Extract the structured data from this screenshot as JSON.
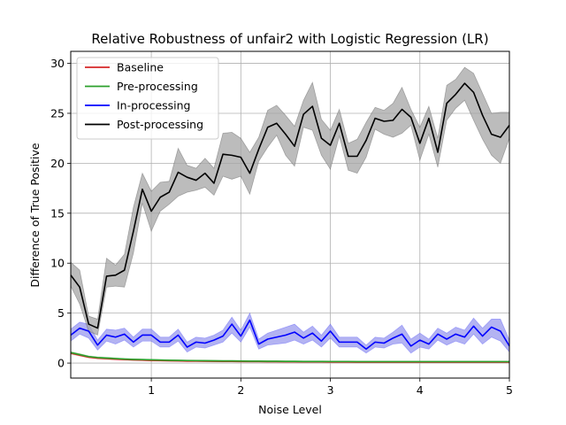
{
  "chart_data": {
    "type": "line",
    "title": "Relative Robustness of unfair2 with Logistic Regression (LR)",
    "xlabel": "Noise Level",
    "ylabel": "Difference of True Positive",
    "xlim": [
      0.1,
      5.0
    ],
    "ylim": [
      -1.5,
      31.2
    ],
    "xticks": [
      1,
      2,
      3,
      4,
      5
    ],
    "yticks": [
      0,
      5,
      10,
      15,
      20,
      25,
      30
    ],
    "grid": true,
    "legend_position": "top-left",
    "x": [
      0.1,
      0.2,
      0.3,
      0.4,
      0.5,
      0.6,
      0.7,
      0.8,
      0.9,
      1.0,
      1.1,
      1.2,
      1.3,
      1.4,
      1.5,
      1.6,
      1.7,
      1.8,
      1.9,
      2.0,
      2.1,
      2.2,
      2.3,
      2.4,
      2.5,
      2.6,
      2.7,
      2.8,
      2.9,
      3.0,
      3.1,
      3.2,
      3.3,
      3.4,
      3.5,
      3.6,
      3.7,
      3.8,
      3.9,
      4.0,
      4.1,
      4.2,
      4.3,
      4.4,
      4.5,
      4.6,
      4.7,
      4.8,
      4.9,
      5.0
    ],
    "series": [
      {
        "name": "Baseline",
        "color": "#d62728",
        "fill": "#e88080",
        "values": [
          1.0,
          0.8,
          0.6,
          0.5,
          0.45,
          0.4,
          0.35,
          0.32,
          0.3,
          0.27,
          0.25,
          0.23,
          0.22,
          0.2,
          0.2,
          0.19,
          0.18,
          0.17,
          0.17,
          0.16,
          0.15,
          0.15,
          0.14,
          0.14,
          0.13,
          0.13,
          0.12,
          0.12,
          0.12,
          0.11,
          0.11,
          0.11,
          0.1,
          0.1,
          0.1,
          0.1,
          0.1,
          0.1,
          0.1,
          0.1,
          0.1,
          0.1,
          0.1,
          0.1,
          0.1,
          0.1,
          0.1,
          0.1,
          0.1,
          0.1
        ],
        "lower": [
          0.9,
          0.7,
          0.52,
          0.42,
          0.36,
          0.32,
          0.28,
          0.25,
          0.23,
          0.2,
          0.18,
          0.17,
          0.16,
          0.14,
          0.14,
          0.13,
          0.12,
          0.11,
          0.11,
          0.1,
          0.09,
          0.09,
          0.08,
          0.08,
          0.07,
          0.07,
          0.06,
          0.06,
          0.06,
          0.05,
          0.05,
          0.05,
          0.04,
          0.04,
          0.04,
          0.04,
          0.04,
          0.04,
          0.04,
          0.04,
          0.04,
          0.04,
          0.04,
          0.04,
          0.04,
          0.04,
          0.04,
          0.04,
          0.04,
          0.04
        ],
        "upper": [
          1.1,
          0.9,
          0.68,
          0.58,
          0.54,
          0.48,
          0.42,
          0.39,
          0.37,
          0.34,
          0.32,
          0.29,
          0.28,
          0.26,
          0.26,
          0.25,
          0.24,
          0.23,
          0.23,
          0.22,
          0.21,
          0.21,
          0.2,
          0.2,
          0.19,
          0.19,
          0.18,
          0.18,
          0.18,
          0.17,
          0.17,
          0.17,
          0.16,
          0.16,
          0.16,
          0.16,
          0.16,
          0.16,
          0.16,
          0.16,
          0.16,
          0.16,
          0.16,
          0.16,
          0.16,
          0.16,
          0.16,
          0.16,
          0.16,
          0.16
        ]
      },
      {
        "name": "Pre-processing",
        "color": "#2ca02c",
        "fill": "#80c880",
        "values": [
          1.05,
          0.85,
          0.65,
          0.55,
          0.5,
          0.45,
          0.4,
          0.37,
          0.35,
          0.32,
          0.3,
          0.28,
          0.27,
          0.25,
          0.24,
          0.23,
          0.22,
          0.21,
          0.21,
          0.2,
          0.19,
          0.19,
          0.18,
          0.18,
          0.17,
          0.17,
          0.16,
          0.16,
          0.16,
          0.15,
          0.15,
          0.15,
          0.14,
          0.14,
          0.14,
          0.14,
          0.14,
          0.14,
          0.14,
          0.14,
          0.14,
          0.14,
          0.14,
          0.14,
          0.14,
          0.14,
          0.14,
          0.14,
          0.14,
          0.14
        ],
        "lower": [
          0.95,
          0.75,
          0.57,
          0.47,
          0.42,
          0.37,
          0.33,
          0.3,
          0.28,
          0.25,
          0.23,
          0.21,
          0.2,
          0.18,
          0.17,
          0.16,
          0.15,
          0.14,
          0.14,
          0.13,
          0.12,
          0.12,
          0.11,
          0.11,
          0.1,
          0.1,
          0.09,
          0.09,
          0.09,
          0.08,
          0.08,
          0.08,
          0.07,
          0.07,
          0.07,
          0.07,
          0.07,
          0.07,
          0.07,
          0.07,
          0.07,
          0.07,
          0.07,
          0.07,
          0.07,
          0.07,
          0.07,
          0.07,
          0.07,
          0.07
        ],
        "upper": [
          1.15,
          0.95,
          0.73,
          0.63,
          0.58,
          0.53,
          0.47,
          0.44,
          0.42,
          0.39,
          0.37,
          0.35,
          0.34,
          0.32,
          0.31,
          0.3,
          0.29,
          0.28,
          0.28,
          0.27,
          0.26,
          0.26,
          0.25,
          0.25,
          0.24,
          0.24,
          0.23,
          0.23,
          0.23,
          0.22,
          0.22,
          0.22,
          0.21,
          0.21,
          0.21,
          0.21,
          0.21,
          0.21,
          0.21,
          0.21,
          0.21,
          0.21,
          0.21,
          0.21,
          0.21,
          0.21,
          0.21,
          0.21,
          0.21,
          0.21
        ]
      },
      {
        "name": "In-processing",
        "color": "#0000ff",
        "fill": "#9a9aee",
        "values": [
          2.8,
          3.5,
          3.2,
          1.8,
          2.8,
          2.6,
          2.9,
          2.1,
          2.8,
          2.8,
          2.1,
          2.1,
          2.8,
          1.6,
          2.1,
          2.0,
          2.3,
          2.7,
          3.9,
          2.7,
          4.3,
          1.9,
          2.4,
          2.6,
          2.8,
          3.1,
          2.5,
          3.0,
          2.2,
          3.2,
          2.1,
          2.1,
          2.1,
          1.4,
          2.1,
          2.0,
          2.5,
          2.9,
          1.7,
          2.3,
          1.9,
          2.9,
          2.4,
          2.9,
          2.6,
          3.7,
          2.7,
          3.6,
          3.2,
          1.7
        ],
        "lower": [
          2.2,
          2.9,
          2.5,
          1.3,
          2.2,
          1.9,
          2.3,
          1.6,
          2.2,
          2.2,
          1.6,
          1.6,
          2.2,
          1.1,
          1.6,
          1.5,
          1.8,
          2.1,
          3.0,
          2.1,
          3.6,
          1.4,
          1.8,
          1.9,
          2.0,
          2.3,
          1.9,
          2.3,
          1.6,
          2.5,
          1.6,
          1.6,
          1.6,
          1.0,
          1.6,
          1.5,
          1.9,
          2.0,
          1.0,
          1.6,
          1.4,
          2.3,
          1.8,
          2.2,
          1.9,
          2.9,
          1.9,
          2.6,
          2.2,
          1.1
        ],
        "upper": [
          3.4,
          4.1,
          3.9,
          2.3,
          3.4,
          3.3,
          3.5,
          2.6,
          3.4,
          3.4,
          2.6,
          2.6,
          3.4,
          2.1,
          2.6,
          2.5,
          2.8,
          3.3,
          4.6,
          3.3,
          5.0,
          2.4,
          3.0,
          3.3,
          3.6,
          3.9,
          3.1,
          3.7,
          2.8,
          3.9,
          2.6,
          2.6,
          2.6,
          1.8,
          2.6,
          2.5,
          3.1,
          3.8,
          2.4,
          3.0,
          2.4,
          3.5,
          3.0,
          3.6,
          3.3,
          4.5,
          3.5,
          4.4,
          4.4,
          2.3
        ]
      },
      {
        "name": "Post-processing",
        "color": "#000000",
        "fill": "#a6a6a6",
        "values": [
          8.8,
          7.6,
          3.9,
          3.5,
          8.7,
          8.8,
          9.3,
          13.2,
          17.4,
          15.2,
          16.6,
          17.1,
          19.1,
          18.6,
          18.3,
          19.0,
          18.0,
          20.9,
          20.8,
          20.6,
          19.0,
          21.4,
          23.6,
          24.0,
          22.9,
          21.7,
          24.9,
          25.7,
          22.5,
          21.8,
          24.0,
          20.7,
          20.7,
          22.3,
          24.5,
          24.2,
          24.3,
          25.4,
          24.6,
          22.0,
          24.5,
          21.1,
          26.0,
          26.9,
          28.0,
          27.1,
          24.8,
          22.9,
          22.6,
          23.8
        ],
        "lower": [
          7.7,
          5.9,
          3.2,
          2.8,
          7.6,
          7.7,
          7.6,
          11.0,
          16.0,
          13.2,
          15.2,
          15.9,
          16.7,
          17.1,
          17.3,
          17.6,
          16.8,
          18.7,
          18.4,
          18.7,
          16.9,
          20.2,
          21.6,
          22.8,
          20.8,
          19.7,
          23.6,
          23.3,
          20.8,
          19.4,
          22.7,
          19.3,
          19.0,
          20.6,
          23.4,
          22.9,
          22.6,
          23.0,
          23.8,
          20.3,
          22.9,
          19.6,
          24.3,
          25.5,
          26.3,
          24.3,
          22.4,
          20.8,
          20.0,
          22.5
        ],
        "upper": [
          10.1,
          9.3,
          4.7,
          4.4,
          10.5,
          9.8,
          10.9,
          15.6,
          19.0,
          17.2,
          18.1,
          18.2,
          21.5,
          19.8,
          19.5,
          20.5,
          19.5,
          23.0,
          23.1,
          22.5,
          21.1,
          22.6,
          25.3,
          25.8,
          24.8,
          23.7,
          26.3,
          28.1,
          24.4,
          23.3,
          25.4,
          22.0,
          22.4,
          24.1,
          25.6,
          25.3,
          26.0,
          27.6,
          25.4,
          23.6,
          25.7,
          22.5,
          27.8,
          28.4,
          29.6,
          29.0,
          27.0,
          25.0,
          25.1,
          25.1
        ]
      }
    ]
  }
}
